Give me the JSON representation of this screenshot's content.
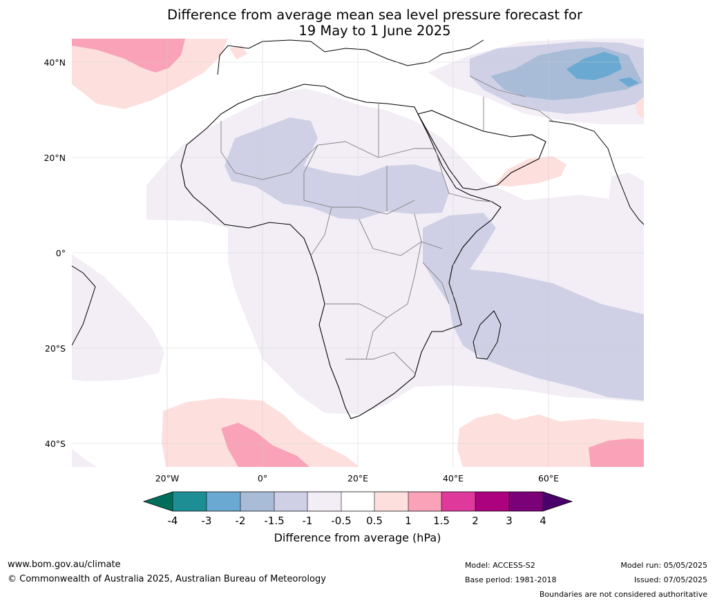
{
  "title": {
    "line1": "Difference from average mean sea level pressure forecast for",
    "line2": "19 May to 1 June 2025"
  },
  "map": {
    "lat_labels": [
      "40°N",
      "20°N",
      "0°",
      "20°S",
      "40°S"
    ],
    "lon_labels": [
      "20°W",
      "0°",
      "20°E",
      "40°E",
      "60°E"
    ],
    "colors": {
      "neg4": "#006e5b",
      "neg3": "#1d8f94",
      "neg2": "#6aa9d1",
      "neg15": "#a8bcd8",
      "neg1": "#cfd0e6",
      "neg05": "#f3eef6",
      "zero": "#ffffff",
      "pos05": "#fde0de",
      "pos1": "#f9a2b8",
      "pos15": "#e0399c",
      "pos2": "#ad0280",
      "pos3": "#7a0178",
      "pos4": "#4a006a",
      "coast": "#000000",
      "border": "#7f7f7f",
      "grid": "#cccccc"
    }
  },
  "colorbar": {
    "ticks": [
      "-4",
      "-3",
      "-2",
      "-1.5",
      "-1",
      "-0.5",
      "0.5",
      "1",
      "1.5",
      "2",
      "3",
      "4"
    ],
    "label": "Difference from average (hPa)"
  },
  "footer": {
    "website": "www.bom.gov.au/climate",
    "copyright": "© Commonwealth of Australia 2025, Australian Bureau of Meteorology",
    "model": "Model: ACCESS-S2",
    "base_period": "Base period: 1981-2018",
    "model_run": "Model run: 05/05/2025",
    "issued": "Issued: 07/05/2025",
    "disclaimer": "Boundaries are not considered authoritative"
  }
}
